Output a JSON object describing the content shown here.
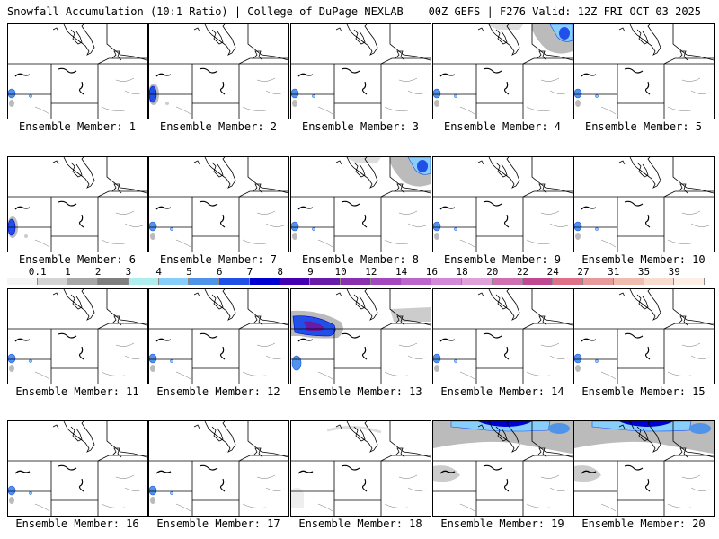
{
  "header": {
    "left_title": "Snowfall Accumulation (10:1 Ratio) | College of DuPage NEXLAB",
    "right_title": "00Z GEFS | F276 Valid: 12Z FRI OCT 03 2025"
  },
  "members": [
    {
      "label": "Ensemble Member: 1",
      "snow": "west-small"
    },
    {
      "label": "Ensemble Member: 2",
      "snow": "west-medium"
    },
    {
      "label": "Ensemble Member: 3",
      "snow": "west-small"
    },
    {
      "label": "Ensemble Member: 4",
      "snow": "west-small,northeast"
    },
    {
      "label": "Ensemble Member: 5",
      "snow": "west-small"
    },
    {
      "label": "Ensemble Member: 6",
      "snow": "west-medium"
    },
    {
      "label": "Ensemble Member: 7",
      "snow": "west-small"
    },
    {
      "label": "Ensemble Member: 8",
      "snow": "west-small,northeast"
    },
    {
      "label": "Ensemble Member: 9",
      "snow": "west-small"
    },
    {
      "label": "Ensemble Member: 10",
      "snow": "west-small"
    },
    {
      "label": "Ensemble Member: 11",
      "snow": "west-small"
    },
    {
      "label": "Ensemble Member: 12",
      "snow": "west-small"
    },
    {
      "label": "Ensemble Member: 13",
      "snow": "north-heavy"
    },
    {
      "label": "Ensemble Member: 14",
      "snow": "west-small"
    },
    {
      "label": "Ensemble Member: 15",
      "snow": "west-small"
    },
    {
      "label": "Ensemble Member: 16",
      "snow": "west-small"
    },
    {
      "label": "Ensemble Member: 17",
      "snow": "west-small"
    },
    {
      "label": "Ensemble Member: 18",
      "snow": "light"
    },
    {
      "label": "Ensemble Member: 19",
      "snow": "north-band"
    },
    {
      "label": "Ensemble Member: 20",
      "snow": "north-band"
    }
  ],
  "colorbar": {
    "labels": [
      "0.1",
      "1",
      "2",
      "3",
      "4",
      "5",
      "6",
      "7",
      "8",
      "9",
      "10",
      "12",
      "14",
      "16",
      "18",
      "20",
      "22",
      "24",
      "27",
      "31",
      "35",
      "39"
    ],
    "colors": [
      "#f4f4f4",
      "#d3d3d3",
      "#a8a8a8",
      "#7f7f7f",
      "#aeeeee",
      "#87cefa",
      "#4f94e8",
      "#2050e8",
      "#0000d0",
      "#4400b0",
      "#6a1aa8",
      "#8a2fb0",
      "#a448c0",
      "#bc66cc",
      "#d488d8",
      "#e0a0d8",
      "#d070b0",
      "#c04890",
      "#e07088",
      "#e89a9a",
      "#f0bcb0",
      "#f8dcd0",
      "#fdeee6"
    ]
  }
}
